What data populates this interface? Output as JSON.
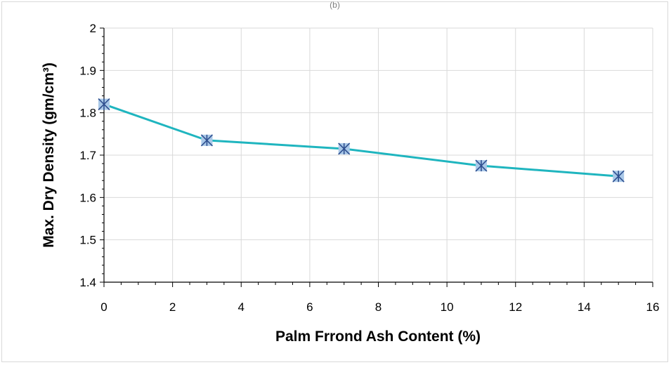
{
  "header_fragment": "(b)",
  "chart_data": {
    "type": "line",
    "xlabel": "Palm Frrond Ash Content  (%)",
    "ylabel": "Max. Dry Density (gm/cm³)",
    "xlim": [
      0,
      16
    ],
    "ylim": [
      1.4,
      2.0
    ],
    "x_ticks": [
      "0",
      "2",
      "4",
      "6",
      "8",
      "10",
      "12",
      "14",
      "16"
    ],
    "y_ticks": [
      "1.4",
      "1.5",
      "1.6",
      "1.7",
      "1.8",
      "1.9",
      "2"
    ],
    "grid": true,
    "series": [
      {
        "x": [
          0,
          3,
          7,
          11,
          15
        ],
        "y": [
          1.82,
          1.735,
          1.715,
          1.675,
          1.65
        ],
        "color": "#1fb5bf",
        "marker": "asterisk-square",
        "marker_fill": "#a9c8e8",
        "marker_stroke": "#2f4f8f"
      }
    ]
  }
}
